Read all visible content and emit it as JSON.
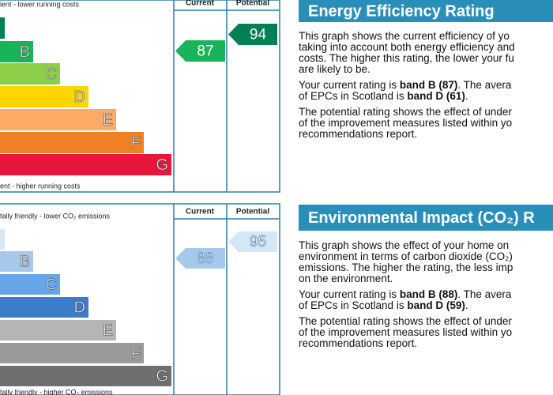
{
  "panels": [
    {
      "header_current": "Current",
      "header_potential": "Potential",
      "top_note": "ient - lower running costs",
      "bottom_note": "ent - higher running costs",
      "bands": [
        "B",
        "C",
        "D",
        "E",
        "F",
        "G"
      ],
      "current": 87,
      "potential": 94,
      "title": "Energy Efficiency Rating",
      "paragraphs": [
        [
          [
            "This graph shows the current efficiency of yo"
          ],
          [
            "taking into account both energy efficiency and"
          ],
          [
            "costs. The higher this rating, the lower your fu"
          ],
          [
            "are likely to be."
          ]
        ],
        [
          [
            "Your current rating is ",
            "band B (87)",
            ". The avera"
          ],
          [
            "of EPCs in Scotland is ",
            "band D (61)",
            "."
          ]
        ],
        [
          [
            "The potential rating shows the effect of under"
          ],
          [
            "of the improvement measures listed within yo"
          ],
          [
            "recommendations report."
          ]
        ]
      ]
    },
    {
      "header_current": "Current",
      "header_potential": "Potential",
      "top_note": "tally friendly - lower CO₂ emissions",
      "bottom_note": "tally friendly - higher CO₂ emissions",
      "bands": [
        "B",
        "C",
        "D",
        "E",
        "F",
        "G"
      ],
      "current": 88,
      "potential": 95,
      "title": "Environmental Impact (CO₂) R",
      "paragraphs": [
        [
          [
            "This graph shows the effect of your home on"
          ],
          [
            "environment in terms of carbon dioxide (CO₂)"
          ],
          [
            "emissions. The higher the rating, the less imp"
          ],
          [
            "on the environment."
          ]
        ],
        [
          [
            "Your current rating is ",
            "band B (88)",
            ". The avera"
          ],
          [
            "of EPCs in Scotland is ",
            "band D (59)",
            "."
          ]
        ],
        [
          [
            "The potential rating shows the effect of under"
          ],
          [
            "of the improvement measures listed within yo"
          ],
          [
            "recommendations report."
          ]
        ]
      ]
    }
  ]
}
